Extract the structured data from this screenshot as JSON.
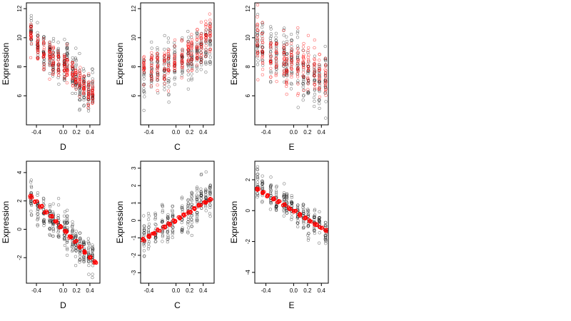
{
  "figure": {
    "background": "#ffffff",
    "point_color": "#000000",
    "fit_color": "#ff0000"
  },
  "chart_data": [
    {
      "type": "scatter",
      "row": 1,
      "col": 1,
      "xlabel": "D",
      "ylabel": "Expression",
      "xlim": [
        -0.55,
        0.55
      ],
      "ylim": [
        4.0,
        12.4
      ],
      "xticks": [
        -0.4,
        0.0,
        0.2,
        0.4
      ],
      "xticklabels": [
        "-0.4",
        "0.0",
        "0.2",
        "0.4"
      ],
      "yticks": [
        6,
        8,
        10,
        12
      ],
      "yticklabels": [
        "6",
        "8",
        "10",
        "12"
      ],
      "x_positions": [
        -0.48,
        -0.38,
        -0.29,
        -0.2,
        -0.15,
        -0.07,
        0.02,
        0.06,
        0.14,
        0.19,
        0.25,
        0.31,
        0.38,
        0.44
      ],
      "observed_series": [
        {
          "name": "black",
          "color": "#000000",
          "means": [
            10.6,
            9.7,
            9.1,
            8.7,
            8.2,
            8.4,
            8.2,
            8.6,
            7.6,
            7.3,
            6.4,
            6.9,
            6.3,
            6.5
          ],
          "spread": 1.2,
          "n_per_x": 24
        },
        {
          "name": "red",
          "color": "#ff0000",
          "means": [
            10.3,
            9.5,
            8.9,
            8.8,
            8.4,
            8.2,
            8.0,
            7.9,
            7.5,
            7.2,
            6.9,
            6.6,
            6.3,
            6.1
          ],
          "spread": 0.9,
          "n_per_x": 20
        }
      ],
      "fit": null
    },
    {
      "type": "scatter",
      "row": 1,
      "col": 2,
      "xlabel": "C",
      "ylabel": "Expression",
      "xlim": [
        -0.52,
        0.56
      ],
      "ylim": [
        4.0,
        12.4
      ],
      "xticks": [
        -0.4,
        0.0,
        0.2,
        0.4
      ],
      "xticklabels": [
        "-0.4",
        "0.0",
        "0.2",
        "0.4"
      ],
      "yticks": [
        6,
        8,
        10,
        12
      ],
      "yticklabels": [
        "6",
        "8",
        "10",
        "12"
      ],
      "x_positions": [
        -0.47,
        -0.36,
        -0.27,
        -0.17,
        -0.11,
        -0.02,
        0.09,
        0.18,
        0.23,
        0.31,
        0.37,
        0.44,
        0.5
      ],
      "observed_series": [
        {
          "name": "black",
          "color": "#000000",
          "means": [
            7.5,
            7.6,
            8.0,
            7.8,
            7.6,
            7.9,
            8.2,
            8.3,
            8.7,
            8.9,
            9.2,
            9.5,
            9.4
          ],
          "spread": 1.6,
          "n_per_x": 22
        },
        {
          "name": "red",
          "color": "#ff0000",
          "means": [
            7.8,
            7.9,
            8.0,
            8.1,
            8.2,
            8.3,
            8.5,
            8.7,
            9.0,
            9.4,
            9.8,
            10.2,
            10.3
          ],
          "spread": 1.2,
          "n_per_x": 18
        }
      ],
      "fit": null
    },
    {
      "type": "scatter",
      "row": 1,
      "col": 3,
      "xlabel": "E",
      "ylabel": "Expression",
      "xlim": [
        -0.56,
        0.5
      ],
      "ylim": [
        4.0,
        12.4
      ],
      "xticks": [
        -0.4,
        0.0,
        0.2,
        0.4
      ],
      "xticklabels": [
        "-0.4",
        "0.0",
        "0.2",
        "0.4"
      ],
      "yticks": [
        6,
        8,
        10,
        12
      ],
      "yticklabels": [
        "6",
        "8",
        "10",
        "12"
      ],
      "x_positions": [
        -0.52,
        -0.45,
        -0.33,
        -0.25,
        -0.14,
        -0.1,
        -0.03,
        0.06,
        0.14,
        0.21,
        0.3,
        0.37,
        0.46
      ],
      "observed_series": [
        {
          "name": "black",
          "color": "#000000",
          "means": [
            9.6,
            9.3,
            9.2,
            8.8,
            8.6,
            8.4,
            8.3,
            8.0,
            7.6,
            7.3,
            7.2,
            7.0,
            7.1
          ],
          "spread": 1.7,
          "n_per_x": 22
        },
        {
          "name": "red",
          "color": "#ff0000",
          "means": [
            10.2,
            8.9,
            8.7,
            8.2,
            8.5,
            7.9,
            8.1,
            8.0,
            8.5,
            8.3,
            7.6,
            7.4,
            7.2
          ],
          "spread": 1.5,
          "n_per_x": 18
        }
      ],
      "fit": null
    },
    {
      "type": "scatter",
      "row": 2,
      "col": 1,
      "xlabel": "D",
      "ylabel": "Expression",
      "xlim": [
        -0.55,
        0.55
      ],
      "ylim": [
        -3.8,
        4.8
      ],
      "xticks": [
        -0.4,
        0.0,
        0.2,
        0.4
      ],
      "xticklabels": [
        "-0.4",
        "0.0",
        "0.2",
        "0.4"
      ],
      "yticks": [
        -2,
        0,
        2,
        4
      ],
      "yticklabels": [
        "-2",
        "0",
        "2",
        "4"
      ],
      "x_positions": [
        -0.48,
        -0.38,
        -0.29,
        -0.2,
        -0.15,
        -0.07,
        0.02,
        0.06,
        0.14,
        0.19,
        0.25,
        0.31,
        0.38,
        0.44
      ],
      "observed_series": [
        {
          "name": "black",
          "color": "#000000",
          "means": [
            2.4,
            1.7,
            1.3,
            0.8,
            0.7,
            0.3,
            0.1,
            -0.1,
            -0.6,
            -0.9,
            -1.3,
            -1.5,
            -1.9,
            -2.0
          ],
          "spread": 1.0,
          "n_per_x": 24
        }
      ],
      "fit": {
        "color": "#ff0000",
        "x": [
          -0.48,
          0.48
        ],
        "y": [
          2.3,
          -2.3
        ],
        "n": 14
      }
    },
    {
      "type": "scatter",
      "row": 2,
      "col": 2,
      "xlabel": "C",
      "ylabel": "Expression",
      "xlim": [
        -0.52,
        0.56
      ],
      "ylim": [
        -3.6,
        3.4
      ],
      "xticks": [
        -0.4,
        0.0,
        0.2,
        0.4
      ],
      "xticklabels": [
        "-0.4",
        "0.0",
        "0.2",
        "0.4"
      ],
      "yticks": [
        -3,
        -2,
        -1,
        0,
        1,
        2,
        3
      ],
      "yticklabels": [
        "-3",
        "-2",
        "-1",
        "0",
        "1",
        "2",
        "3"
      ],
      "x_positions": [
        -0.47,
        -0.4,
        -0.3,
        -0.2,
        -0.12,
        -0.05,
        0.09,
        0.18,
        0.23,
        0.31,
        0.37,
        0.44,
        0.5
      ],
      "observed_series": [
        {
          "name": "black",
          "color": "#000000",
          "means": [
            -1.0,
            -0.7,
            -0.5,
            -0.3,
            -0.2,
            0.0,
            0.2,
            0.4,
            0.6,
            0.9,
            1.1,
            1.4,
            1.5
          ],
          "spread": 1.0,
          "n_per_x": 22
        }
      ],
      "fit": {
        "color": "#ff0000",
        "x": [
          -0.48,
          0.5
        ],
        "y": [
          -1.1,
          1.2
        ],
        "n": 14
      }
    },
    {
      "type": "scatter",
      "row": 2,
      "col": 3,
      "xlabel": "E",
      "ylabel": "Expression",
      "xlim": [
        -0.56,
        0.5
      ],
      "ylim": [
        -4.7,
        3.2
      ],
      "xticks": [
        -0.4,
        0.0,
        0.2,
        0.4
      ],
      "xticklabels": [
        "-0.4",
        "0.0",
        "0.2",
        "0.4"
      ],
      "yticks": [
        -4,
        -2,
        0,
        2
      ],
      "yticklabels": [
        "-4",
        "-2",
        "0",
        "2"
      ],
      "x_positions": [
        -0.52,
        -0.45,
        -0.33,
        -0.25,
        -0.14,
        -0.1,
        -0.03,
        0.06,
        0.14,
        0.21,
        0.3,
        0.37,
        0.46
      ],
      "observed_series": [
        {
          "name": "black",
          "color": "#000000",
          "means": [
            1.8,
            1.4,
            0.9,
            0.7,
            0.5,
            0.3,
            0.2,
            -0.1,
            -0.3,
            -0.6,
            -0.8,
            -0.9,
            -1.4
          ],
          "spread": 0.9,
          "n_per_x": 22
        }
      ],
      "fit": {
        "color": "#ff0000",
        "x": [
          -0.52,
          0.47
        ],
        "y": [
          1.4,
          -1.3
        ],
        "n": 14
      }
    }
  ]
}
